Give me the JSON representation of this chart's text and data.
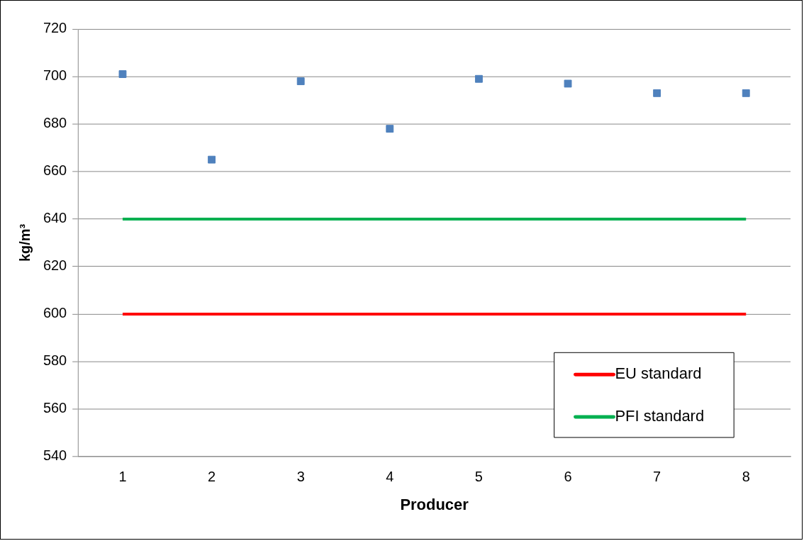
{
  "chart_data": {
    "type": "scatter",
    "xlabel": "Producer",
    "ylabel": "kg/m³",
    "categories": [
      "1",
      "2",
      "3",
      "4",
      "5",
      "6",
      "7",
      "8"
    ],
    "series": [
      {
        "marker": "square",
        "color": "#4f81bd",
        "values": [
          701,
          665,
          698,
          678,
          699,
          697,
          693,
          693
        ]
      },
      {
        "type": "line",
        "marker": "none",
        "name": "EU standard",
        "color": "#ff0000",
        "values": [
          600,
          600,
          600,
          600,
          600,
          600,
          600,
          600
        ]
      },
      {
        "type": "line",
        "marker": "none",
        "name": "PFI standard",
        "color": "#00b050",
        "values": [
          640,
          640,
          640,
          640,
          640,
          640,
          640,
          640
        ]
      }
    ],
    "ylim": [
      540,
      720
    ],
    "yticks": [
      540,
      560,
      580,
      600,
      620,
      640,
      660,
      680,
      700,
      720
    ],
    "grid": "y",
    "legend": "bottom right"
  }
}
